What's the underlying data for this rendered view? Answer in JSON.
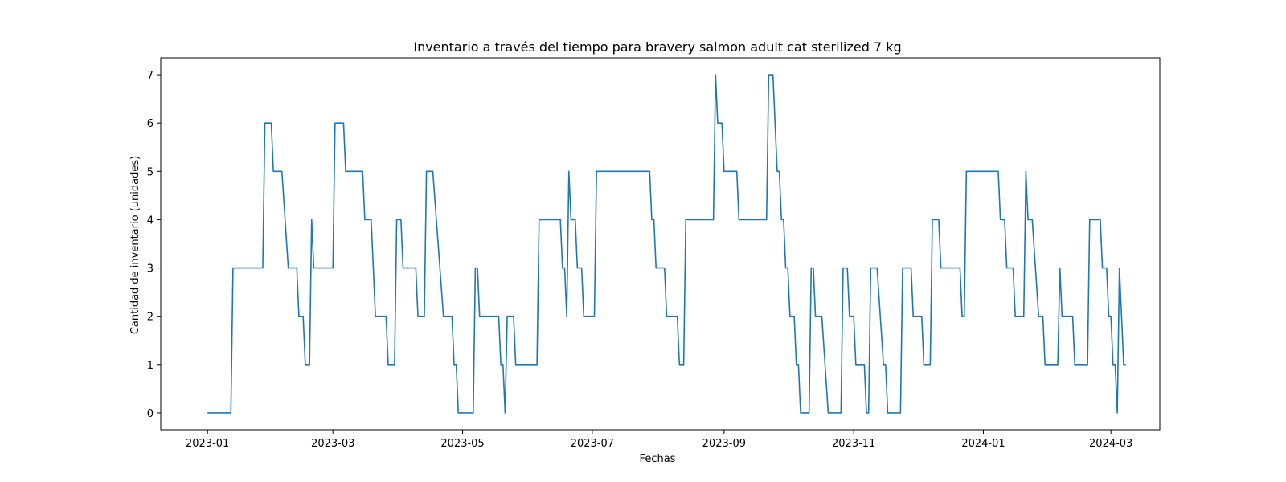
{
  "chart_data": {
    "type": "line",
    "title": "Inventario a través del tiempo para bravery salmon adult cat sterilized 7 kg",
    "xlabel": "Fechas",
    "ylabel": "Cantidad de inventario (unidades)",
    "xlim": [
      "2022-12-10",
      "2024-03-24"
    ],
    "ylim": [
      -0.35,
      7.35
    ],
    "x_ticks": [
      "2023-01",
      "2023-03",
      "2023-05",
      "2023-07",
      "2023-09",
      "2023-11",
      "2024-01",
      "2024-03"
    ],
    "y_ticks": [
      0,
      1,
      2,
      3,
      4,
      5,
      6,
      7
    ],
    "grid": false,
    "color": "#1f77b4",
    "series": [
      {
        "points": [
          [
            "2023-01-01",
            0
          ],
          [
            "2023-01-12",
            0
          ],
          [
            "2023-01-13",
            3
          ],
          [
            "2023-01-27",
            3
          ],
          [
            "2023-01-28",
            6
          ],
          [
            "2023-01-31",
            6
          ],
          [
            "2023-02-01",
            5
          ],
          [
            "2023-02-05",
            5
          ],
          [
            "2023-02-08",
            3
          ],
          [
            "2023-02-12",
            3
          ],
          [
            "2023-02-13",
            2
          ],
          [
            "2023-02-15",
            2
          ],
          [
            "2023-02-16",
            1
          ],
          [
            "2023-02-18",
            1
          ],
          [
            "2023-02-19",
            4
          ],
          [
            "2023-02-20",
            3
          ],
          [
            "2023-03-01",
            3
          ],
          [
            "2023-03-02",
            6
          ],
          [
            "2023-03-06",
            6
          ],
          [
            "2023-03-07",
            5
          ],
          [
            "2023-03-15",
            5
          ],
          [
            "2023-03-16",
            4
          ],
          [
            "2023-03-19",
            4
          ],
          [
            "2023-03-21",
            2
          ],
          [
            "2023-03-26",
            2
          ],
          [
            "2023-03-27",
            1
          ],
          [
            "2023-03-30",
            1
          ],
          [
            "2023-03-31",
            4
          ],
          [
            "2023-04-02",
            4
          ],
          [
            "2023-04-03",
            3
          ],
          [
            "2023-04-09",
            3
          ],
          [
            "2023-04-10",
            2
          ],
          [
            "2023-04-13",
            2
          ],
          [
            "2023-04-14",
            5
          ],
          [
            "2023-04-17",
            5
          ],
          [
            "2023-04-22",
            2
          ],
          [
            "2023-04-26",
            2
          ],
          [
            "2023-04-27",
            1
          ],
          [
            "2023-04-28",
            1
          ],
          [
            "2023-04-29",
            0
          ],
          [
            "2023-05-06",
            0
          ],
          [
            "2023-05-07",
            3
          ],
          [
            "2023-05-08",
            3
          ],
          [
            "2023-05-09",
            2
          ],
          [
            "2023-05-18",
            2
          ],
          [
            "2023-05-19",
            1
          ],
          [
            "2023-05-20",
            1
          ],
          [
            "2023-05-21",
            0
          ],
          [
            "2023-05-22",
            2
          ],
          [
            "2023-05-25",
            2
          ],
          [
            "2023-05-26",
            1
          ],
          [
            "2023-06-05",
            1
          ],
          [
            "2023-06-06",
            4
          ],
          [
            "2023-06-16",
            4
          ],
          [
            "2023-06-17",
            3
          ],
          [
            "2023-06-18",
            3
          ],
          [
            "2023-06-19",
            2
          ],
          [
            "2023-06-20",
            5
          ],
          [
            "2023-06-21",
            4
          ],
          [
            "2023-06-23",
            4
          ],
          [
            "2023-06-24",
            3
          ],
          [
            "2023-06-26",
            3
          ],
          [
            "2023-06-27",
            2
          ],
          [
            "2023-07-02",
            2
          ],
          [
            "2023-07-03",
            5
          ],
          [
            "2023-07-28",
            5
          ],
          [
            "2023-07-29",
            4
          ],
          [
            "2023-07-30",
            4
          ],
          [
            "2023-07-31",
            3
          ],
          [
            "2023-08-04",
            3
          ],
          [
            "2023-08-05",
            2
          ],
          [
            "2023-08-10",
            2
          ],
          [
            "2023-08-11",
            1
          ],
          [
            "2023-08-13",
            1
          ],
          [
            "2023-08-14",
            4
          ],
          [
            "2023-08-27",
            4
          ],
          [
            "2023-08-28",
            7
          ],
          [
            "2023-08-29",
            6
          ],
          [
            "2023-08-31",
            6
          ],
          [
            "2023-09-01",
            5
          ],
          [
            "2023-09-07",
            5
          ],
          [
            "2023-09-08",
            4
          ],
          [
            "2023-09-21",
            4
          ],
          [
            "2023-09-22",
            7
          ],
          [
            "2023-09-24",
            7
          ],
          [
            "2023-09-26",
            5
          ],
          [
            "2023-09-27",
            5
          ],
          [
            "2023-09-28",
            4
          ],
          [
            "2023-09-29",
            4
          ],
          [
            "2023-09-30",
            3
          ],
          [
            "2023-10-01",
            3
          ],
          [
            "2023-10-02",
            2
          ],
          [
            "2023-10-04",
            2
          ],
          [
            "2023-10-05",
            1
          ],
          [
            "2023-10-06",
            1
          ],
          [
            "2023-10-07",
            0
          ],
          [
            "2023-10-11",
            0
          ],
          [
            "2023-10-12",
            3
          ],
          [
            "2023-10-13",
            3
          ],
          [
            "2023-10-14",
            2
          ],
          [
            "2023-10-17",
            2
          ],
          [
            "2023-10-20",
            0
          ],
          [
            "2023-10-26",
            0
          ],
          [
            "2023-10-27",
            3
          ],
          [
            "2023-10-29",
            3
          ],
          [
            "2023-10-30",
            2
          ],
          [
            "2023-11-01",
            2
          ],
          [
            "2023-11-02",
            1
          ],
          [
            "2023-11-06",
            1
          ],
          [
            "2023-11-07",
            0
          ],
          [
            "2023-11-08",
            0
          ],
          [
            "2023-11-09",
            3
          ],
          [
            "2023-11-12",
            3
          ],
          [
            "2023-11-15",
            1
          ],
          [
            "2023-11-16",
            1
          ],
          [
            "2023-11-17",
            0
          ],
          [
            "2023-11-23",
            0
          ],
          [
            "2023-11-24",
            3
          ],
          [
            "2023-11-28",
            3
          ],
          [
            "2023-11-29",
            2
          ],
          [
            "2023-12-03",
            2
          ],
          [
            "2023-12-04",
            1
          ],
          [
            "2023-12-07",
            1
          ],
          [
            "2023-12-08",
            4
          ],
          [
            "2023-12-11",
            4
          ],
          [
            "2023-12-12",
            3
          ],
          [
            "2023-12-21",
            3
          ],
          [
            "2023-12-22",
            2
          ],
          [
            "2023-12-23",
            2
          ],
          [
            "2023-12-24",
            5
          ],
          [
            "2024-01-08",
            5
          ],
          [
            "2024-01-09",
            4
          ],
          [
            "2024-01-11",
            4
          ],
          [
            "2024-01-12",
            3
          ],
          [
            "2024-01-15",
            3
          ],
          [
            "2024-01-16",
            2
          ],
          [
            "2024-01-20",
            2
          ],
          [
            "2024-01-21",
            5
          ],
          [
            "2024-01-22",
            4
          ],
          [
            "2024-01-24",
            4
          ],
          [
            "2024-01-27",
            2
          ],
          [
            "2024-01-29",
            2
          ],
          [
            "2024-01-30",
            1
          ],
          [
            "2024-02-05",
            1
          ],
          [
            "2024-02-06",
            3
          ],
          [
            "2024-02-07",
            2
          ],
          [
            "2024-02-12",
            2
          ],
          [
            "2024-02-13",
            1
          ],
          [
            "2024-02-19",
            1
          ],
          [
            "2024-02-20",
            4
          ],
          [
            "2024-02-25",
            4
          ],
          [
            "2024-02-26",
            3
          ],
          [
            "2024-02-28",
            3
          ],
          [
            "2024-02-29",
            2
          ],
          [
            "2024-03-01",
            2
          ],
          [
            "2024-03-02",
            1
          ],
          [
            "2024-03-03",
            1
          ],
          [
            "2024-03-04",
            0
          ],
          [
            "2024-03-05",
            3
          ],
          [
            "2024-03-07",
            1
          ],
          [
            "2024-03-08",
            1
          ]
        ]
      }
    ]
  }
}
